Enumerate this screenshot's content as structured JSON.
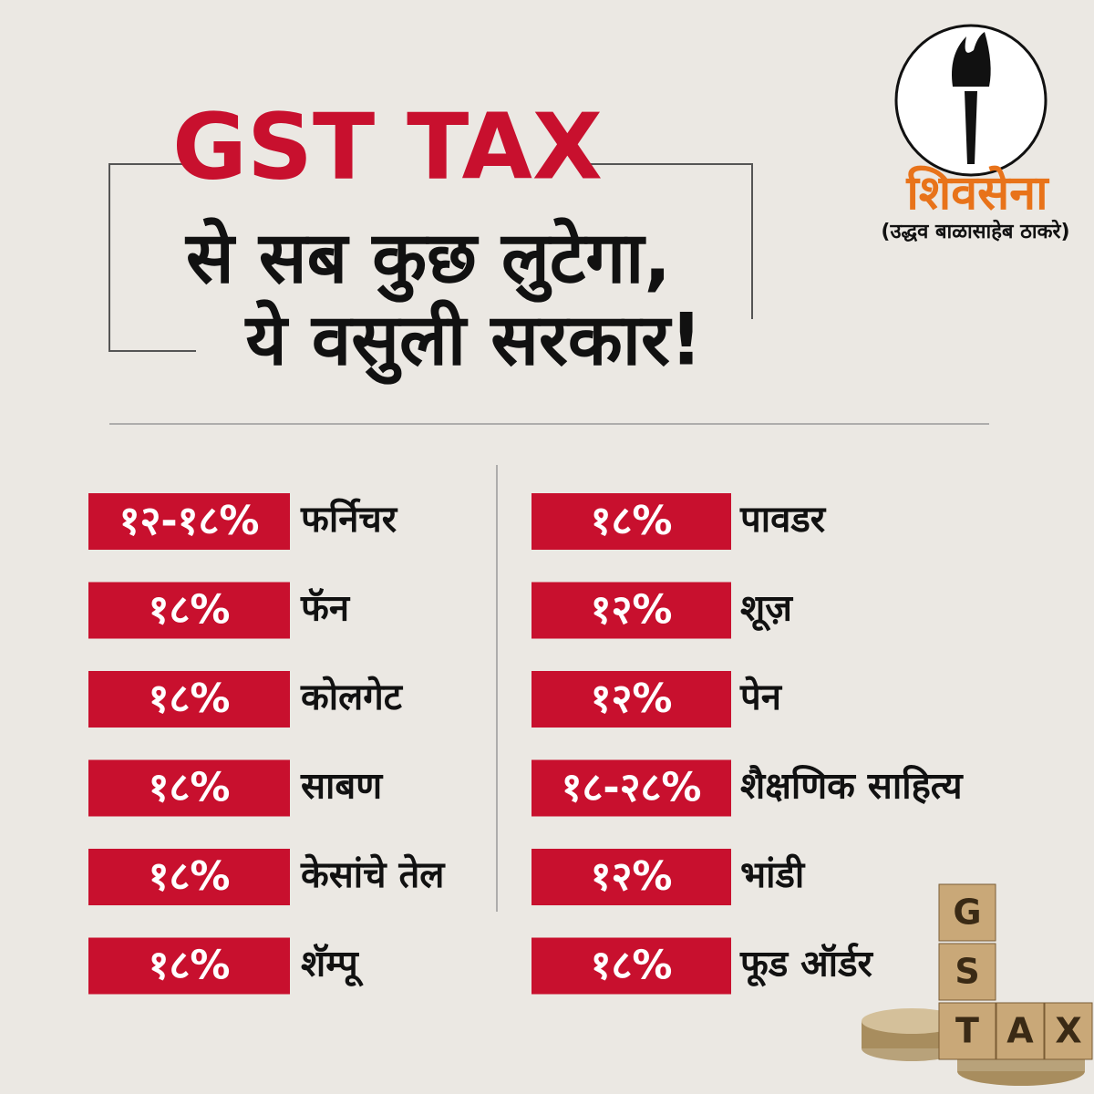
{
  "header": {
    "title": "GST TAX",
    "lines": [
      "से सब कुछ लुटेगा,",
      "ये वसुली सरकार!"
    ]
  },
  "logo": {
    "name": "शिवसेना",
    "subtitle": "(उद्धव बाळासाहेब ठाकरे)"
  },
  "items": {
    "left": [
      {
        "rate": "१२-१८%",
        "label": "फर्निचर"
      },
      {
        "rate": "१८%",
        "label": "फॅन"
      },
      {
        "rate": "१८%",
        "label": "कोलगेट"
      },
      {
        "rate": "१८%",
        "label": "साबण"
      },
      {
        "rate": "१८%",
        "label": "केसांचे तेल"
      },
      {
        "rate": "१८%",
        "label": "शॅम्पू"
      }
    ],
    "right": [
      {
        "rate": "१८%",
        "label": "पावडर"
      },
      {
        "rate": "१२%",
        "label": "शूज़"
      },
      {
        "rate": "१२%",
        "label": "पेन"
      },
      {
        "rate": "१८-२८%",
        "label": "शैक्षणिक साहित्य"
      },
      {
        "rate": "१२%",
        "label": "भांडी"
      },
      {
        "rate": "१८%",
        "label": "फूड ऑर्डर"
      }
    ]
  },
  "blocks": [
    "G",
    "S",
    "T",
    "A",
    "X"
  ]
}
